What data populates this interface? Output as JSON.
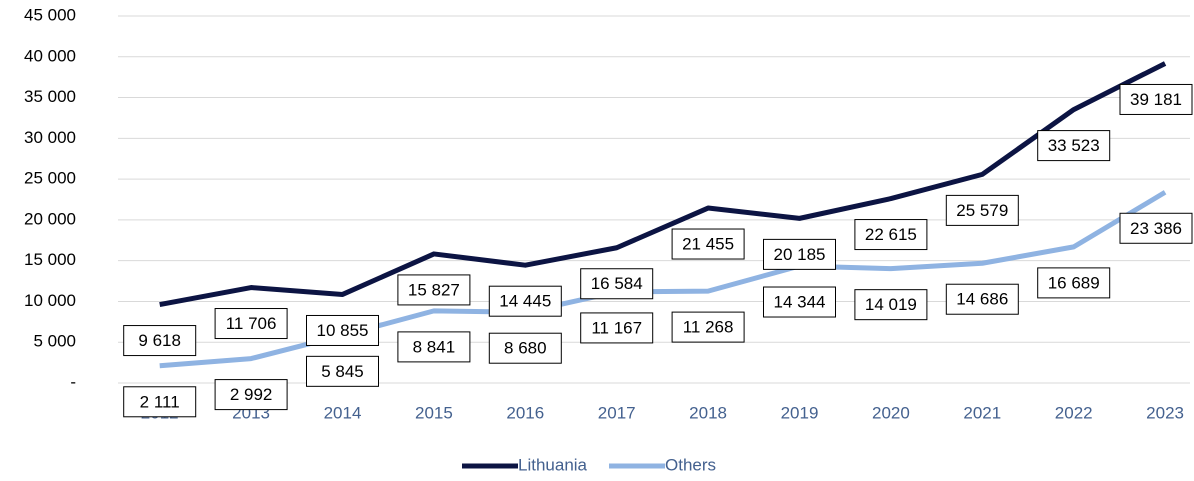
{
  "chart_data": {
    "type": "line",
    "categories": [
      "2012",
      "2013",
      "2014",
      "2015",
      "2016",
      "2017",
      "2018",
      "2019",
      "2020",
      "2021",
      "2022",
      "2023"
    ],
    "series": [
      {
        "name": "Lithuania",
        "color": "#0c1443",
        "values": [
          9618,
          11706,
          10855,
          15827,
          14445,
          16584,
          21455,
          20185,
          22615,
          25579,
          33523,
          39181
        ],
        "value_labels": [
          "9 618",
          "11 706",
          "10 855",
          "15 827",
          "14 445",
          "16 584",
          "21 455",
          "20 185",
          "22 615",
          "25 579",
          "33 523",
          "39 181"
        ]
      },
      {
        "name": "Others",
        "color": "#8fb3e2",
        "values": [
          2111,
          2992,
          5845,
          8841,
          8680,
          11167,
          11268,
          14344,
          14019,
          14686,
          16689,
          23386
        ],
        "value_labels": [
          "2 111",
          "2 992",
          "5 845",
          "8 841",
          "8 680",
          "11 167",
          "11 268",
          "14 344",
          "14 019",
          "14 686",
          "16 689",
          "23 386"
        ]
      }
    ],
    "ylim": [
      0,
      45000
    ],
    "yticks": [
      {
        "value": 0,
        "label": "-"
      },
      {
        "value": 5000,
        "label": "5 000"
      },
      {
        "value": 10000,
        "label": "10 000"
      },
      {
        "value": 15000,
        "label": "15 000"
      },
      {
        "value": 20000,
        "label": "20 000"
      },
      {
        "value": 25000,
        "label": "25 000"
      },
      {
        "value": 30000,
        "label": "30 000"
      },
      {
        "value": 35000,
        "label": "35 000"
      },
      {
        "value": 40000,
        "label": "40 000"
      },
      {
        "value": 45000,
        "label": "45 000"
      }
    ],
    "grid": true,
    "legend": "bottom"
  }
}
